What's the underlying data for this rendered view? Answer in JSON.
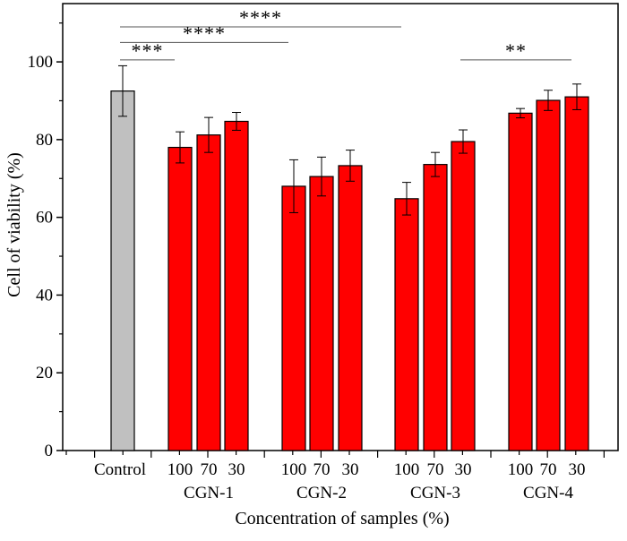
{
  "chart_data": {
    "type": "bar",
    "xlabel": "Concentration of samples (%)",
    "ylabel": "Cell of viability (%)",
    "ylim": [
      0,
      115
    ],
    "yticks": [
      0,
      20,
      40,
      60,
      80,
      100
    ],
    "grid": false,
    "bars": [
      {
        "label": "Control",
        "group": "",
        "value": 92.5,
        "error": 6.5,
        "color": "#c0c0c0"
      },
      {
        "label": "100",
        "group": "CGN-1",
        "value": 78,
        "error": 4,
        "color": "#ff0000"
      },
      {
        "label": "70",
        "group": "CGN-1",
        "value": 81.2,
        "error": 4.5,
        "color": "#ff0000"
      },
      {
        "label": "30",
        "group": "CGN-1",
        "value": 84.7,
        "error": 2.3,
        "color": "#ff0000"
      },
      {
        "label": "100",
        "group": "CGN-2",
        "value": 68,
        "error": 6.8,
        "color": "#ff0000"
      },
      {
        "label": "70",
        "group": "CGN-2",
        "value": 70.5,
        "error": 5,
        "color": "#ff0000"
      },
      {
        "label": "30",
        "group": "CGN-2",
        "value": 73.3,
        "error": 4,
        "color": "#ff0000"
      },
      {
        "label": "100",
        "group": "CGN-3",
        "value": 64.8,
        "error": 4.2,
        "color": "#ff0000"
      },
      {
        "label": "70",
        "group": "CGN-3",
        "value": 73.6,
        "error": 3.1,
        "color": "#ff0000"
      },
      {
        "label": "30",
        "group": "CGN-3",
        "value": 79.5,
        "error": 3,
        "color": "#ff0000"
      },
      {
        "label": "100",
        "group": "CGN-4",
        "value": 86.8,
        "error": 1.2,
        "color": "#ff0000"
      },
      {
        "label": "70",
        "group": "CGN-4",
        "value": 90.1,
        "error": 2.6,
        "color": "#ff0000"
      },
      {
        "label": "30",
        "group": "CGN-4",
        "value": 91,
        "error": 3.3,
        "color": "#ff0000"
      }
    ],
    "groups": [
      "CGN-1",
      "CGN-2",
      "CGN-3",
      "CGN-4"
    ],
    "significance": [
      {
        "from": 0,
        "to": 7,
        "y": 109,
        "label": "****"
      },
      {
        "from": 0,
        "to": 4,
        "y": 105,
        "label": "****"
      },
      {
        "from": 0,
        "to": 1,
        "y": 100.5,
        "label": "***"
      },
      {
        "from": 9,
        "to": 12,
        "y": 100.5,
        "label": "**"
      }
    ]
  }
}
